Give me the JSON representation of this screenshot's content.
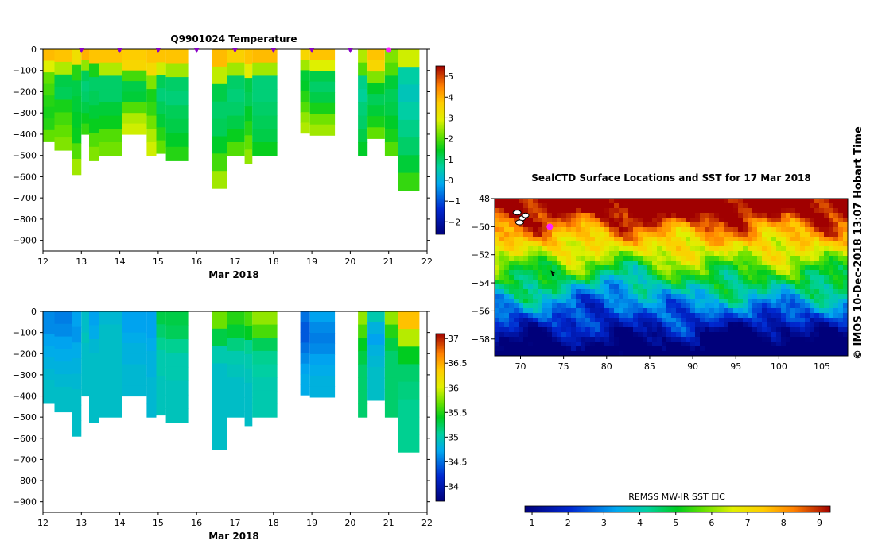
{
  "credit": "© IMOS 10-Dec-2018 13:07 Hobart Time",
  "chart_data": [
    {
      "type": "heatmap",
      "name": "temperature-section",
      "title": "Q9901024  Temperature",
      "xlabel": "Mar 2018",
      "ylabel": "",
      "xlim": [
        12,
        22
      ],
      "ylim": [
        -950,
        0
      ],
      "xticks": [
        12,
        13,
        14,
        15,
        16,
        17,
        18,
        19,
        20,
        21,
        22
      ],
      "yticks": [
        0,
        -100,
        -200,
        -300,
        -400,
        -500,
        -600,
        -700,
        -800,
        -900
      ],
      "profile_markers": [
        13,
        14,
        15,
        16,
        17,
        18,
        19,
        20
      ],
      "current_marker": 21,
      "colorbar": {
        "min": -2.6,
        "max": 5.5,
        "ticks": [
          5,
          4,
          3,
          2,
          1,
          0,
          -1,
          -2
        ]
      },
      "profiles": [
        {
          "start": 12.0,
          "end": 12.3,
          "max_depth": -435,
          "values": [
            3.9,
            2.9,
            2.1,
            1.9,
            1.7,
            1.6,
            1.7,
            2.1
          ]
        },
        {
          "start": 12.3,
          "end": 12.75,
          "max_depth": -475,
          "values": [
            3.8,
            2.6,
            1.2,
            1.1,
            1.6,
            1.9,
            2.1,
            2.3
          ]
        },
        {
          "start": 12.75,
          "end": 13.0,
          "max_depth": -590,
          "values": [
            3.3,
            1.7,
            1.2,
            1.3,
            1.4,
            1.5,
            2.0,
            2.5
          ]
        },
        {
          "start": 13.0,
          "end": 13.2,
          "max_depth": -400,
          "values": [
            4.0,
            2.4,
            1.1,
            0.9,
            1.0,
            1.2,
            1.5,
            1.8
          ]
        },
        {
          "start": 13.2,
          "end": 13.45,
          "max_depth": -525,
          "values": [
            3.8,
            1.6,
            1.0,
            1.1,
            1.3,
            1.5,
            2.0,
            2.3
          ]
        },
        {
          "start": 13.45,
          "end": 14.05,
          "max_depth": -500,
          "values": [
            3.8,
            2.6,
            1.0,
            1.0,
            1.3,
            1.5,
            2.0,
            2.2
          ]
        },
        {
          "start": 14.05,
          "end": 14.7,
          "max_depth": -400,
          "values": [
            3.7,
            3.5,
            1.9,
            1.2,
            1.3,
            2.0,
            2.6,
            2.8
          ]
        },
        {
          "start": 14.7,
          "end": 14.95,
          "max_depth": -500,
          "values": [
            3.8,
            3.4,
            2.3,
            1.6,
            1.8,
            2.2,
            2.6,
            2.8
          ]
        },
        {
          "start": 14.95,
          "end": 15.2,
          "max_depth": -490,
          "values": [
            3.8,
            2.8,
            1.1,
            0.9,
            1.1,
            1.3,
            1.7,
            2.1
          ]
        },
        {
          "start": 15.2,
          "end": 15.8,
          "max_depth": -525,
          "values": [
            3.8,
            2.5,
            1.0,
            0.9,
            1.1,
            1.2,
            1.4,
            1.7
          ]
        },
        {
          "start": 16.4,
          "end": 16.8,
          "max_depth": -655,
          "values": [
            3.9,
            2.7,
            1.2,
            1.0,
            1.1,
            1.4,
            1.9,
            2.5
          ]
        },
        {
          "start": 16.8,
          "end": 17.25,
          "max_depth": -500,
          "values": [
            3.6,
            2.5,
            1.0,
            0.9,
            1.0,
            1.2,
            1.5,
            2.0
          ]
        },
        {
          "start": 17.25,
          "end": 17.45,
          "max_depth": -540,
          "values": [
            3.8,
            3.0,
            1.2,
            1.1,
            1.4,
            1.7,
            2.1,
            2.4
          ]
        },
        {
          "start": 17.45,
          "end": 18.1,
          "max_depth": -500,
          "values": [
            3.9,
            2.5,
            0.9,
            0.9,
            1.0,
            1.1,
            1.2,
            1.5
          ]
        },
        {
          "start": 18.7,
          "end": 18.95,
          "max_depth": -395,
          "values": [
            3.5,
            2.5,
            1.3,
            1.4,
            1.7,
            2.0,
            2.4,
            2.6
          ]
        },
        {
          "start": 18.95,
          "end": 19.6,
          "max_depth": -405,
          "values": [
            3.8,
            2.9,
            1.2,
            1.0,
            1.2,
            1.6,
            2.2,
            2.5
          ]
        },
        {
          "start": 20.2,
          "end": 20.45,
          "max_depth": -500,
          "values": [
            2.6,
            2.0,
            0.8,
            0.7,
            0.9,
            1.0,
            1.2,
            1.4
          ]
        },
        {
          "start": 20.45,
          "end": 20.9,
          "max_depth": -420,
          "values": [
            3.8,
            3.5,
            2.3,
            1.4,
            1.1,
            1.3,
            1.6,
            2.1
          ]
        },
        {
          "start": 20.9,
          "end": 21.25,
          "max_depth": -500,
          "values": [
            2.3,
            2.0,
            1.3,
            1.1,
            1.2,
            1.4,
            1.6,
            2.0
          ]
        },
        {
          "start": 21.25,
          "end": 21.8,
          "max_depth": -665,
          "values": [
            2.8,
            0.6,
            0.4,
            0.6,
            0.8,
            1.0,
            1.3,
            1.8
          ]
        }
      ]
    },
    {
      "type": "heatmap",
      "name": "salinity-section",
      "title": "",
      "xlabel": "Mar 2018",
      "ylabel": "",
      "xlim": [
        12,
        22
      ],
      "ylim": [
        -950,
        0
      ],
      "xticks": [
        12,
        13,
        14,
        15,
        16,
        17,
        18,
        19,
        20,
        21,
        22
      ],
      "yticks": [
        0,
        -100,
        -200,
        -300,
        -400,
        -500,
        -600,
        -700,
        -800,
        -900
      ],
      "colorbar": {
        "min": 33.7,
        "max": 37.1,
        "ticks": [
          37,
          36.5,
          36,
          35.5,
          35,
          34.5,
          34
        ]
      },
      "profiles": [
        {
          "start": 12.0,
          "end": 12.3,
          "max_depth": -435,
          "values": [
            34.6,
            34.6,
            34.7,
            34.75,
            34.8,
            34.85,
            34.9,
            34.9
          ]
        },
        {
          "start": 12.3,
          "end": 12.75,
          "max_depth": -475,
          "values": [
            34.55,
            34.6,
            34.7,
            34.75,
            34.8,
            34.85,
            34.9,
            34.9
          ]
        },
        {
          "start": 12.75,
          "end": 13.0,
          "max_depth": -590,
          "values": [
            34.7,
            34.65,
            34.75,
            34.8,
            34.85,
            34.9,
            34.9,
            34.9
          ]
        },
        {
          "start": 13.0,
          "end": 13.2,
          "max_depth": -400,
          "values": [
            34.9,
            34.9,
            34.95,
            34.9,
            34.9,
            34.9,
            34.9,
            34.9
          ]
        },
        {
          "start": 13.2,
          "end": 13.45,
          "max_depth": -525,
          "values": [
            34.7,
            34.75,
            34.85,
            34.9,
            34.9,
            34.9,
            34.9,
            34.9
          ]
        },
        {
          "start": 13.45,
          "end": 14.05,
          "max_depth": -500,
          "values": [
            34.85,
            34.9,
            34.9,
            34.9,
            34.9,
            34.9,
            34.9,
            34.9
          ]
        },
        {
          "start": 14.05,
          "end": 14.7,
          "max_depth": -400,
          "values": [
            34.7,
            34.7,
            34.75,
            34.8,
            34.8,
            34.85,
            34.85,
            34.85
          ]
        },
        {
          "start": 14.7,
          "end": 14.95,
          "max_depth": -500,
          "values": [
            34.7,
            34.7,
            34.75,
            34.8,
            34.8,
            34.85,
            34.85,
            34.85
          ]
        },
        {
          "start": 14.95,
          "end": 15.2,
          "max_depth": -490,
          "values": [
            35.3,
            35.2,
            35.1,
            35.0,
            35.0,
            34.95,
            34.95,
            34.95
          ]
        },
        {
          "start": 15.2,
          "end": 15.8,
          "max_depth": -525,
          "values": [
            35.3,
            35.25,
            35.1,
            35.0,
            35.0,
            34.95,
            34.95,
            34.95
          ]
        },
        {
          "start": 16.4,
          "end": 16.8,
          "max_depth": -655,
          "values": [
            35.7,
            35.3,
            35.0,
            34.9,
            34.9,
            34.9,
            34.9,
            34.9
          ]
        },
        {
          "start": 16.8,
          "end": 17.25,
          "max_depth": -500,
          "values": [
            35.5,
            35.35,
            35.15,
            35.0,
            34.95,
            34.9,
            34.9,
            34.9
          ]
        },
        {
          "start": 17.25,
          "end": 17.45,
          "max_depth": -540,
          "values": [
            35.6,
            35.4,
            35.1,
            35.0,
            34.95,
            34.9,
            34.9,
            34.9
          ]
        },
        {
          "start": 17.45,
          "end": 18.1,
          "max_depth": -500,
          "values": [
            35.8,
            35.6,
            35.25,
            35.1,
            35.05,
            35.0,
            35.0,
            35.0
          ]
        },
        {
          "start": 18.7,
          "end": 18.95,
          "max_depth": -395,
          "values": [
            34.5,
            34.4,
            34.4,
            34.5,
            34.6,
            34.7,
            34.75,
            34.75
          ]
        },
        {
          "start": 18.95,
          "end": 19.6,
          "max_depth": -405,
          "values": [
            34.7,
            34.6,
            34.55,
            34.6,
            34.7,
            34.75,
            34.8,
            34.8
          ]
        },
        {
          "start": 20.2,
          "end": 20.45,
          "max_depth": -500,
          "values": [
            35.8,
            35.6,
            35.4,
            35.3,
            35.2,
            35.2,
            35.2,
            35.2
          ]
        },
        {
          "start": 20.45,
          "end": 20.9,
          "max_depth": -420,
          "values": [
            35.0,
            34.8,
            34.7,
            34.8,
            34.85,
            34.9,
            34.9,
            34.9
          ]
        },
        {
          "start": 20.9,
          "end": 21.25,
          "max_depth": -500,
          "values": [
            35.8,
            35.5,
            35.3,
            35.2,
            35.2,
            35.2,
            35.2,
            35.2
          ]
        },
        {
          "start": 21.25,
          "end": 21.8,
          "max_depth": -665,
          "values": [
            36.4,
            35.9,
            35.4,
            35.2,
            35.15,
            35.1,
            35.1,
            35.1
          ]
        }
      ]
    },
    {
      "type": "heatmap",
      "name": "sst-map",
      "title": "SealCTD Surface Locations and SST for 17 Mar 2018",
      "xlabel": "",
      "ylabel": "",
      "xlim": [
        67,
        108
      ],
      "ylim": [
        -59.2,
        -48
      ],
      "xticks": [
        70,
        75,
        80,
        85,
        90,
        95,
        100,
        105
      ],
      "yticks": [
        -48,
        -50,
        -52,
        -54,
        -56,
        -58
      ],
      "colorbar": {
        "label": "REMSS MW-IR SST ☐C",
        "min": 0.8,
        "max": 9.3,
        "ticks": [
          1,
          2,
          3,
          4,
          5,
          6,
          7,
          8,
          9
        ]
      },
      "seal_location": {
        "lon": 73.4,
        "lat": -50.0
      },
      "arrow_location": {
        "lon": 73.5,
        "lat": -53.1
      },
      "land": [
        {
          "lon": 69.6,
          "lat": -49.0
        },
        {
          "lon": 70.2,
          "lat": -49.4
        },
        {
          "lon": 69.9,
          "lat": -49.7
        },
        {
          "lon": 70.6,
          "lat": -49.2
        }
      ]
    }
  ]
}
